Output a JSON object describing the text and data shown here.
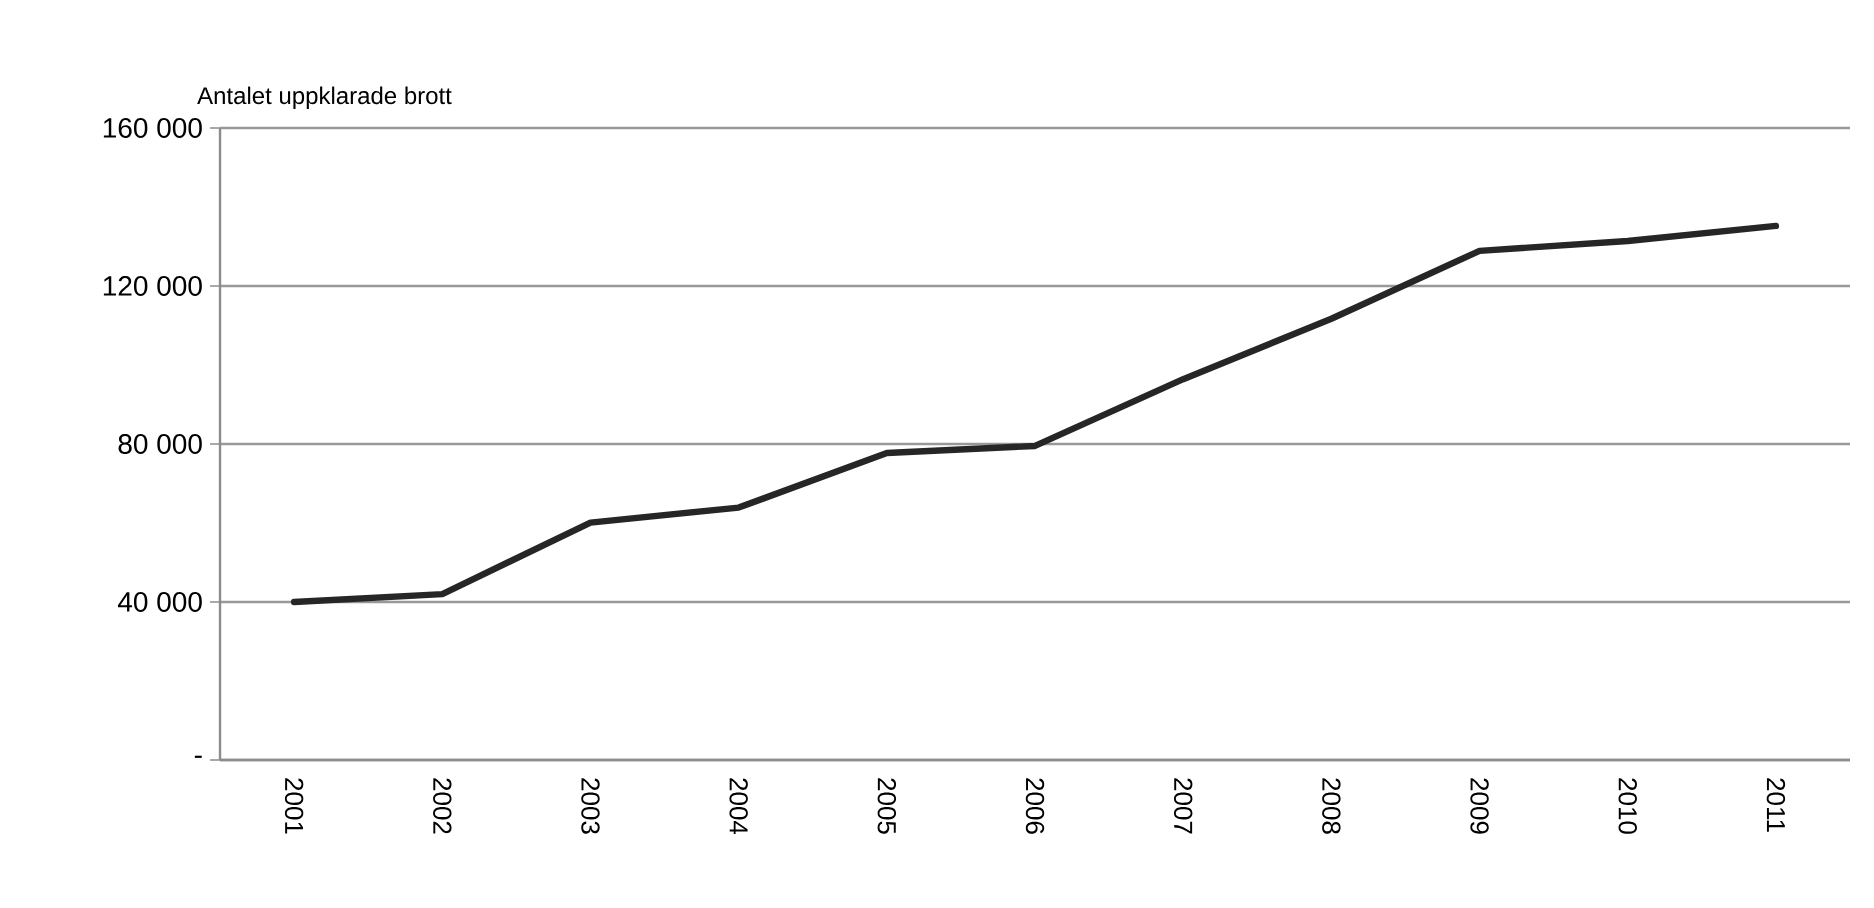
{
  "chart_data": {
    "type": "line",
    "ylabel": "Antalet uppklarade brott",
    "categories": [
      "2001",
      "2002",
      "2003",
      "2004",
      "2005",
      "2006",
      "2007",
      "2008",
      "2009",
      "2010",
      "2011"
    ],
    "series": [
      {
        "color": "#262626",
        "values": [
          40000,
          42000,
          60100,
          63900,
          77700,
          79500,
          96400,
          111700,
          128900,
          131400,
          135200
        ]
      }
    ],
    "ylim": [
      0,
      160000
    ],
    "yticks": [
      {
        "value": 0,
        "label": "-"
      },
      {
        "value": 40000,
        "label": "40 000"
      },
      {
        "value": 80000,
        "label": "80 000"
      },
      {
        "value": 120000,
        "label": "120 000"
      },
      {
        "value": 160000,
        "label": "160 000"
      }
    ],
    "grid": "y",
    "marker": "none",
    "line_style": "solid"
  }
}
